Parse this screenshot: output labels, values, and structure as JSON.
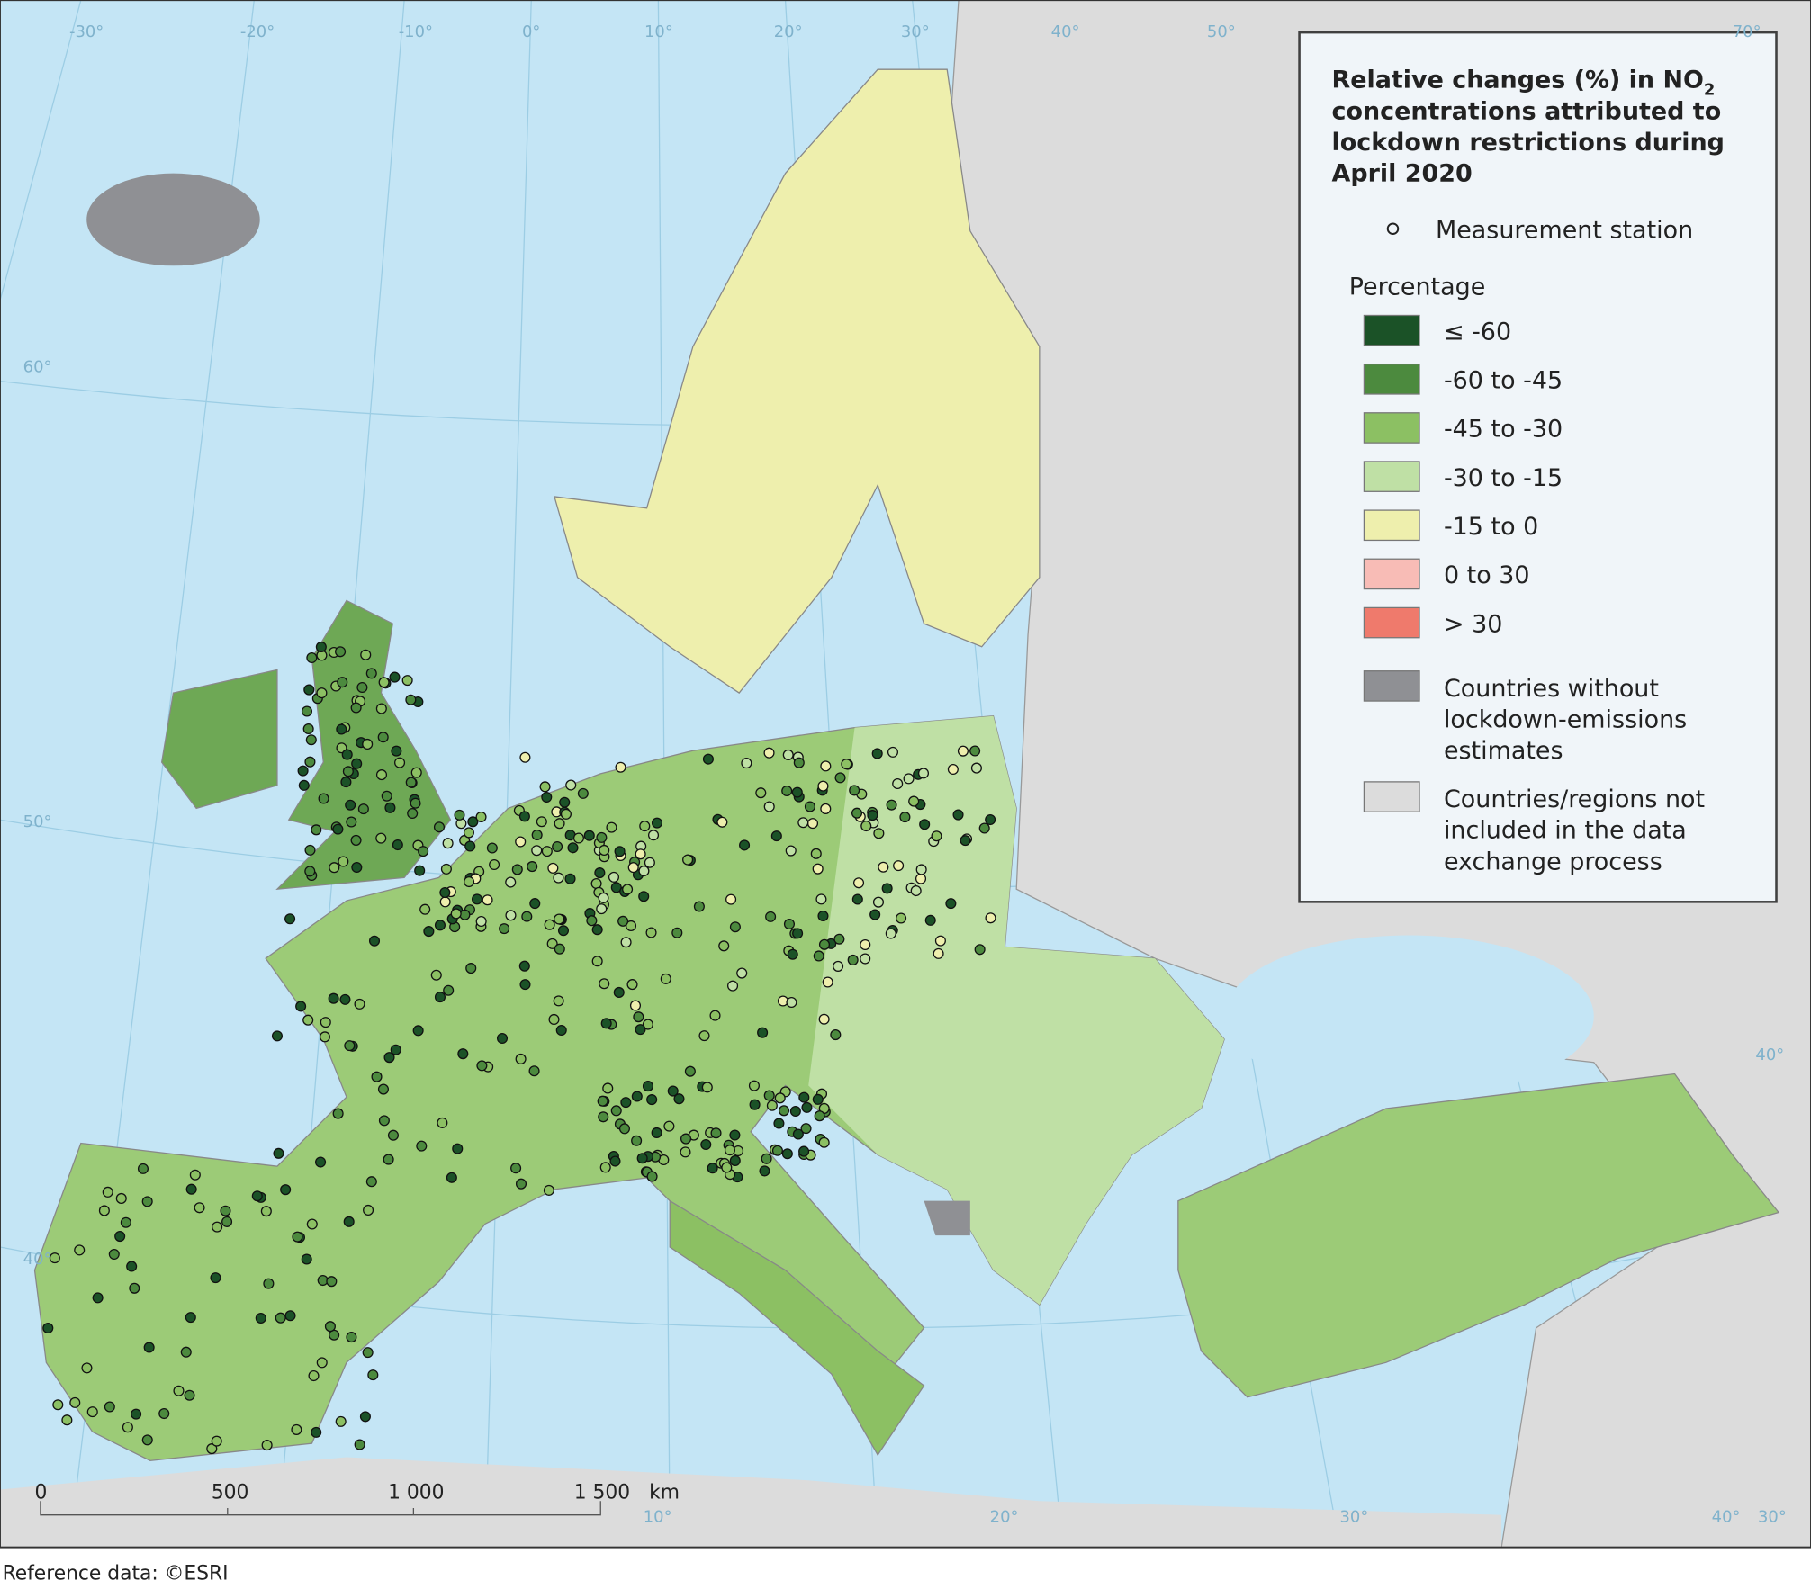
{
  "title": {
    "before": "Relative changes (%) in NO",
    "subscript": "2",
    "after_lines": [
      "concentrations attributed to",
      "lockdown restrictions during",
      "April 2020"
    ]
  },
  "legend": {
    "station": "Measurement station",
    "heading": "Percentage",
    "classes": [
      {
        "label": "≤ -60",
        "color": "#1b5227"
      },
      {
        "label": "-60 to -45",
        "color": "#4c8a3e"
      },
      {
        "label": "-45 to -30",
        "color": "#8cc063"
      },
      {
        "label": "-30 to -15",
        "color": "#bfe0a5"
      },
      {
        "label": "-15 to 0",
        "color": "#eeefad"
      },
      {
        "label": "0 to 30",
        "color": "#f8bcb6"
      },
      {
        "label": "> 30",
        "color": "#ef7a6c"
      }
    ],
    "other": [
      {
        "lines": [
          "Countries without",
          "lockdown-emissions",
          "estimates"
        ],
        "color": "#8f9094"
      },
      {
        "lines": [
          "Countries/regions not",
          "included in the data",
          "exchange process"
        ],
        "color": "#dcdcdc"
      }
    ]
  },
  "graticule": [
    "-30°",
    "-20°",
    "-10°",
    "0°",
    "10°",
    "20°",
    "30°",
    "40°",
    "50°",
    "70°",
    "60°",
    "50°",
    "40°",
    "10°",
    "20°",
    "30°",
    "40°",
    "30°",
    "40°"
  ],
  "scale_bar": [
    "0",
    "500",
    "1 000",
    "1 500",
    "km"
  ],
  "footer": "Reference data: ©ESRI"
}
